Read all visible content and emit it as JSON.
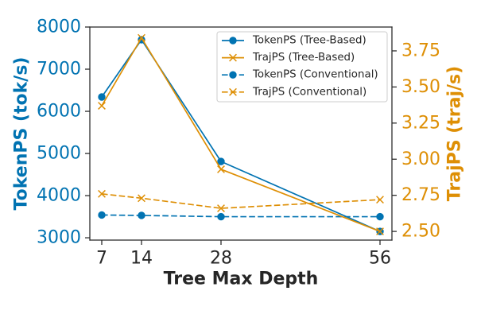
{
  "chart_data": {
    "type": "line",
    "x": [
      7,
      14,
      28,
      56
    ],
    "xlabel": "Tree Max Depth",
    "xlim": [
      4.9,
      58.1
    ],
    "xticks": [
      7,
      14,
      28,
      56
    ],
    "xtick_labels": [
      "7",
      "14",
      "28",
      "56"
    ],
    "text_color": "#262626",
    "y_left": {
      "label": "TokenPS (tok/s)",
      "lim": [
        2945,
        8000
      ],
      "ticks": [
        3000,
        4000,
        5000,
        6000,
        7000,
        8000
      ],
      "tick_labels": [
        "3000",
        "4000",
        "5000",
        "6000",
        "7000",
        "8000"
      ],
      "color": "#0173B2"
    },
    "y_right": {
      "label": "TrajPS (traj/s)",
      "lim": [
        2.44,
        3.915
      ],
      "ticks": [
        2.5,
        2.75,
        3.0,
        3.25,
        3.5,
        3.75
      ],
      "tick_labels": [
        "2.50",
        "2.75",
        "3.00",
        "3.25",
        "3.50",
        "3.75"
      ],
      "color": "#DE8F05"
    },
    "series": [
      {
        "name": "TokenPS (Tree-Based)",
        "axis": "left",
        "values": [
          6340,
          7700,
          4810,
          3150
        ],
        "color": "#0173B2",
        "linestyle": "solid",
        "marker": "circle"
      },
      {
        "name": "TrajPS (Tree-Based)",
        "axis": "right",
        "values": [
          3.37,
          3.84,
          2.93,
          2.5
        ],
        "color": "#DE8F05",
        "linestyle": "solid",
        "marker": "x"
      },
      {
        "name": "TokenPS (Conventional)",
        "axis": "left",
        "values": [
          3540,
          3530,
          3500,
          3500
        ],
        "color": "#0173B2",
        "linestyle": "dashed",
        "marker": "circle"
      },
      {
        "name": "TrajPS (Conventional)",
        "axis": "right",
        "values": [
          2.76,
          2.73,
          2.66,
          2.72
        ],
        "color": "#DE8F05",
        "linestyle": "dashed",
        "marker": "x"
      }
    ],
    "legend": {
      "placement": "upper-right"
    },
    "grid": false
  }
}
